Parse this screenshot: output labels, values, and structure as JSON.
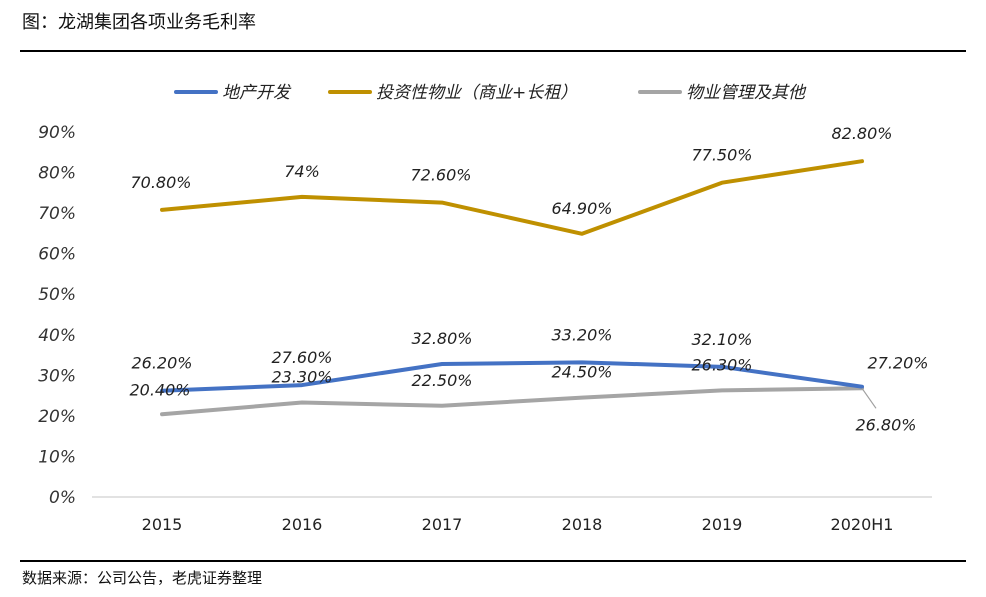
{
  "figure": {
    "title": "图：龙湖集团各项业务毛利率",
    "source": "数据来源：公司公告，老虎证券整理"
  },
  "chart_data": {
    "type": "line",
    "categories": [
      "2015",
      "2016",
      "2017",
      "2018",
      "2019",
      "2020H1"
    ],
    "ylim": [
      0,
      90
    ],
    "ytick_step": 10,
    "ytick_suffix": "%",
    "grid": false,
    "legend_placement": "top",
    "series": [
      {
        "name": "地产开发",
        "color": "#4472C4",
        "values": [
          26.2,
          27.6,
          32.8,
          33.2,
          32.1,
          27.2
        ],
        "labels": [
          "26.20%",
          "27.60%",
          "32.80%",
          "33.20%",
          "32.10%",
          "27.20%"
        ]
      },
      {
        "name": "投资性物业（商业+长租）",
        "color": "#BF9000",
        "values": [
          70.8,
          74.0,
          72.6,
          64.9,
          77.5,
          82.8
        ],
        "labels": [
          "70.80%",
          "74%",
          "72.60%",
          "64.90%",
          "77.50%",
          "82.80%"
        ]
      },
      {
        "name": "物业管理及其他",
        "color": "#A5A5A5",
        "values": [
          20.4,
          23.3,
          22.5,
          24.5,
          26.3,
          26.8
        ],
        "labels": [
          "20.40%",
          "23.30%",
          "22.50%",
          "24.50%",
          "26.30%",
          "26.80%"
        ]
      }
    ]
  }
}
